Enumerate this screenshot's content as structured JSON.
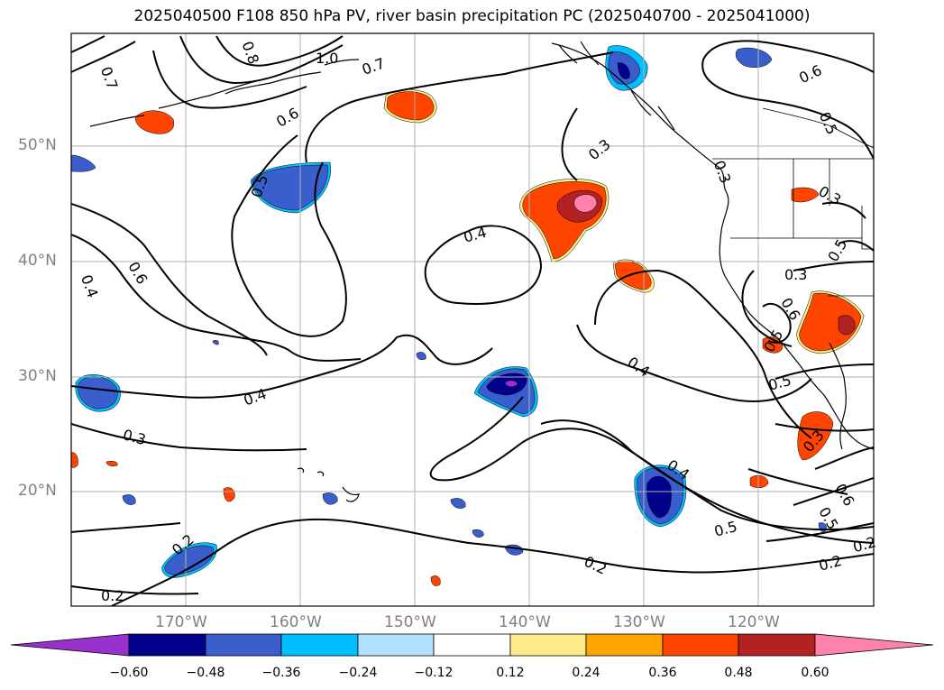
{
  "title": "2025040500 F108 850 hPa PV, river basin precipitation PC (2025040700 - 2025041000)",
  "lat_labels": [
    "50°N",
    "40°N",
    "30°N",
    "20°N"
  ],
  "lon_labels": [
    "170°W",
    "160°W",
    "150°W",
    "140°W",
    "130°W",
    "120°W"
  ],
  "contour_labels": [
    "0.7",
    "0.8",
    "1.0",
    "0.7",
    "0.6",
    "0.5",
    "0.6",
    "0.4",
    "0.4",
    "0.2",
    "0.2",
    "0.3",
    "0.4",
    "0.3",
    "0.4",
    "0.4",
    "0.5",
    "0.2",
    "0.2",
    "0.6",
    "0.5",
    "0.3",
    "0.3",
    "0.6",
    "0.5",
    "0.3",
    "0.5",
    "0.6",
    "0.5",
    "0.2",
    "0.5",
    "0.3"
  ],
  "colorbar": {
    "ticks": [
      "−0.60",
      "−0.48",
      "−0.36",
      "−0.24",
      "−0.12",
      "0.12",
      "0.24",
      "0.36",
      "0.48",
      "0.60"
    ],
    "colors": [
      "#9932CC",
      "#00008B",
      "#3A5FCD",
      "#00BFFF",
      "#B0E2FF",
      "#FFFFFF",
      "#FFEC8B",
      "#FFA500",
      "#FF4500",
      "#B22222",
      "#FF82AB"
    ]
  },
  "colors": {
    "contour": "#000000",
    "grid": "#b0b0b0",
    "coast": "#000000",
    "axis_label": "#808080"
  }
}
